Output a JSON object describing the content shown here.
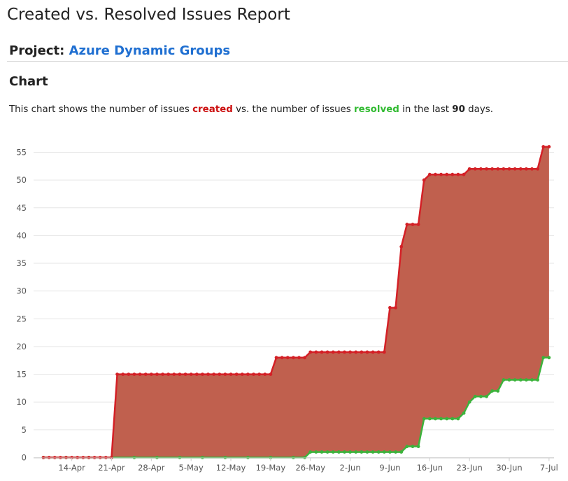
{
  "report": {
    "title": "Created vs. Resolved Issues Report",
    "project_label": "Project:",
    "project_name": "Azure Dynamic Groups",
    "section_heading": "Chart",
    "description": {
      "part1": "This chart shows the number of issues ",
      "created_word": "created",
      "part2": " vs. the number of issues ",
      "resolved_word": "resolved",
      "part3": " in the last ",
      "days": "90",
      "part4": " days."
    }
  },
  "colors": {
    "created": "#d42026",
    "resolved": "#3cb33c",
    "fill": "#c0604e",
    "grid": "#e6e6e6"
  },
  "chart_data": {
    "type": "area",
    "title": "",
    "xlabel": "",
    "ylabel": "",
    "ylim": [
      0,
      57
    ],
    "yticks": [
      0,
      5,
      10,
      15,
      20,
      25,
      30,
      35,
      40,
      45,
      50,
      55
    ],
    "x_tick_labels": [
      "14-Apr",
      "21-Apr",
      "28-Apr",
      "5-May",
      "12-May",
      "19-May",
      "26-May",
      "2-Jun",
      "9-Jun",
      "16-Jun",
      "23-Jun",
      "30-Jun",
      "7-Jul"
    ],
    "x_tick_days": [
      "2025-04-14",
      "2025-04-21",
      "2025-04-28",
      "2025-05-05",
      "2025-05-12",
      "2025-05-19",
      "2025-05-26",
      "2025-06-02",
      "2025-06-09",
      "2025-06-16",
      "2025-06-23",
      "2025-06-30",
      "2025-07-07"
    ],
    "x_range": [
      "2025-04-09",
      "2025-07-08"
    ],
    "grid": true,
    "series": [
      {
        "name": "created",
        "values": [
          [
            "2025-04-09",
            0
          ],
          [
            "2025-04-10",
            0
          ],
          [
            "2025-04-11",
            0
          ],
          [
            "2025-04-12",
            0
          ],
          [
            "2025-04-13",
            0
          ],
          [
            "2025-04-14",
            0
          ],
          [
            "2025-04-15",
            0
          ],
          [
            "2025-04-16",
            0
          ],
          [
            "2025-04-17",
            0
          ],
          [
            "2025-04-18",
            0
          ],
          [
            "2025-04-19",
            0
          ],
          [
            "2025-04-20",
            0
          ],
          [
            "2025-04-21",
            0
          ],
          [
            "2025-04-22",
            15
          ],
          [
            "2025-04-23",
            15
          ],
          [
            "2025-04-24",
            15
          ],
          [
            "2025-04-25",
            15
          ],
          [
            "2025-04-26",
            15
          ],
          [
            "2025-04-27",
            15
          ],
          [
            "2025-04-28",
            15
          ],
          [
            "2025-04-29",
            15
          ],
          [
            "2025-04-30",
            15
          ],
          [
            "2025-05-01",
            15
          ],
          [
            "2025-05-02",
            15
          ],
          [
            "2025-05-03",
            15
          ],
          [
            "2025-05-04",
            15
          ],
          [
            "2025-05-05",
            15
          ],
          [
            "2025-05-06",
            15
          ],
          [
            "2025-05-07",
            15
          ],
          [
            "2025-05-08",
            15
          ],
          [
            "2025-05-09",
            15
          ],
          [
            "2025-05-10",
            15
          ],
          [
            "2025-05-11",
            15
          ],
          [
            "2025-05-12",
            15
          ],
          [
            "2025-05-13",
            15
          ],
          [
            "2025-05-14",
            15
          ],
          [
            "2025-05-15",
            15
          ],
          [
            "2025-05-16",
            15
          ],
          [
            "2025-05-17",
            15
          ],
          [
            "2025-05-18",
            15
          ],
          [
            "2025-05-19",
            15
          ],
          [
            "2025-05-20",
            18
          ],
          [
            "2025-05-21",
            18
          ],
          [
            "2025-05-22",
            18
          ],
          [
            "2025-05-23",
            18
          ],
          [
            "2025-05-24",
            18
          ],
          [
            "2025-05-25",
            18
          ],
          [
            "2025-05-26",
            19
          ],
          [
            "2025-05-27",
            19
          ],
          [
            "2025-05-28",
            19
          ],
          [
            "2025-05-29",
            19
          ],
          [
            "2025-05-30",
            19
          ],
          [
            "2025-05-31",
            19
          ],
          [
            "2025-06-01",
            19
          ],
          [
            "2025-06-02",
            19
          ],
          [
            "2025-06-03",
            19
          ],
          [
            "2025-06-04",
            19
          ],
          [
            "2025-06-05",
            19
          ],
          [
            "2025-06-06",
            19
          ],
          [
            "2025-06-07",
            19
          ],
          [
            "2025-06-08",
            19
          ],
          [
            "2025-06-09",
            27
          ],
          [
            "2025-06-10",
            27
          ],
          [
            "2025-06-11",
            38
          ],
          [
            "2025-06-12",
            42
          ],
          [
            "2025-06-13",
            42
          ],
          [
            "2025-06-14",
            42
          ],
          [
            "2025-06-15",
            50
          ],
          [
            "2025-06-16",
            51
          ],
          [
            "2025-06-17",
            51
          ],
          [
            "2025-06-18",
            51
          ],
          [
            "2025-06-19",
            51
          ],
          [
            "2025-06-20",
            51
          ],
          [
            "2025-06-21",
            51
          ],
          [
            "2025-06-22",
            51
          ],
          [
            "2025-06-23",
            52
          ],
          [
            "2025-06-24",
            52
          ],
          [
            "2025-06-25",
            52
          ],
          [
            "2025-06-26",
            52
          ],
          [
            "2025-06-27",
            52
          ],
          [
            "2025-06-28",
            52
          ],
          [
            "2025-06-29",
            52
          ],
          [
            "2025-06-30",
            52
          ],
          [
            "2025-07-01",
            52
          ],
          [
            "2025-07-02",
            52
          ],
          [
            "2025-07-03",
            52
          ],
          [
            "2025-07-04",
            52
          ],
          [
            "2025-07-05",
            52
          ],
          [
            "2025-07-06",
            56
          ],
          [
            "2025-07-07",
            56
          ]
        ]
      },
      {
        "name": "resolved",
        "values": [
          [
            "2025-04-09",
            0
          ],
          [
            "2025-04-13",
            0
          ],
          [
            "2025-04-17",
            0
          ],
          [
            "2025-04-21",
            0
          ],
          [
            "2025-04-25",
            0
          ],
          [
            "2025-04-29",
            0
          ],
          [
            "2025-05-03",
            0
          ],
          [
            "2025-05-07",
            0
          ],
          [
            "2025-05-11",
            0
          ],
          [
            "2025-05-15",
            0
          ],
          [
            "2025-05-19",
            0
          ],
          [
            "2025-05-23",
            0
          ],
          [
            "2025-05-25",
            0
          ],
          [
            "2025-05-26",
            1
          ],
          [
            "2025-05-27",
            1
          ],
          [
            "2025-05-28",
            1
          ],
          [
            "2025-05-29",
            1
          ],
          [
            "2025-05-30",
            1
          ],
          [
            "2025-05-31",
            1
          ],
          [
            "2025-06-01",
            1
          ],
          [
            "2025-06-02",
            1
          ],
          [
            "2025-06-03",
            1
          ],
          [
            "2025-06-04",
            1
          ],
          [
            "2025-06-05",
            1
          ],
          [
            "2025-06-06",
            1
          ],
          [
            "2025-06-07",
            1
          ],
          [
            "2025-06-08",
            1
          ],
          [
            "2025-06-09",
            1
          ],
          [
            "2025-06-10",
            1
          ],
          [
            "2025-06-11",
            1
          ],
          [
            "2025-06-12",
            2
          ],
          [
            "2025-06-13",
            2
          ],
          [
            "2025-06-14",
            2
          ],
          [
            "2025-06-15",
            7
          ],
          [
            "2025-06-16",
            7
          ],
          [
            "2025-06-17",
            7
          ],
          [
            "2025-06-18",
            7
          ],
          [
            "2025-06-19",
            7
          ],
          [
            "2025-06-20",
            7
          ],
          [
            "2025-06-21",
            7
          ],
          [
            "2025-06-22",
            8
          ],
          [
            "2025-06-23",
            10
          ],
          [
            "2025-06-24",
            11
          ],
          [
            "2025-06-25",
            11
          ],
          [
            "2025-06-26",
            11
          ],
          [
            "2025-06-27",
            12
          ],
          [
            "2025-06-28",
            12
          ],
          [
            "2025-06-29",
            14
          ],
          [
            "2025-06-30",
            14
          ],
          [
            "2025-07-01",
            14
          ],
          [
            "2025-07-02",
            14
          ],
          [
            "2025-07-03",
            14
          ],
          [
            "2025-07-04",
            14
          ],
          [
            "2025-07-05",
            14
          ],
          [
            "2025-07-06",
            18
          ],
          [
            "2025-07-07",
            18
          ]
        ]
      }
    ]
  }
}
